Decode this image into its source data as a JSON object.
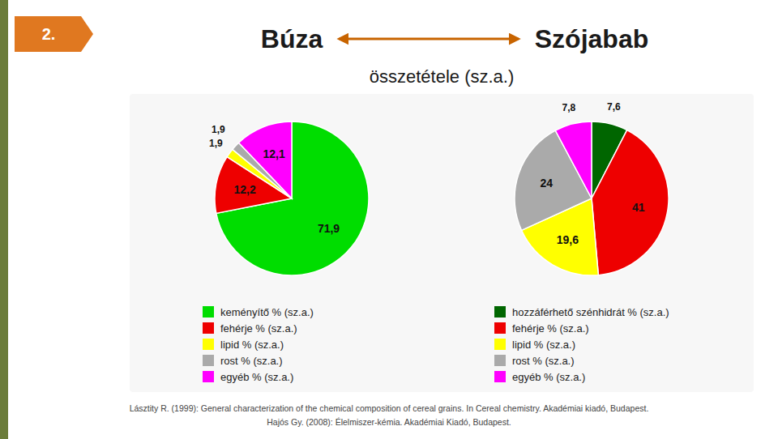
{
  "chart_data": [
    {
      "type": "pie",
      "title": "Búza",
      "categories": [
        "keményítő % (sz.a.)",
        "fehérje % (sz.a.)",
        "lipid % (sz.a.)",
        "rost % (sz.a.)",
        "egyéb % (sz.a.)"
      ],
      "values": [
        71.9,
        12.2,
        1.9,
        1.9,
        12.1
      ],
      "value_labels": [
        "71,9",
        "12,2",
        "1,9",
        "1,9",
        "12,1"
      ],
      "colors": [
        "#00dd00",
        "#ee0000",
        "#ffff00",
        "#aaaaaa",
        "#ff00ff"
      ],
      "data_labels": true,
      "legend": "bottom"
    },
    {
      "type": "pie",
      "title": "Szójabab",
      "categories": [
        "hozzáférhető szénhidrát % (sz.a.)",
        "fehérje % (sz.a.)",
        "lipid % (sz.a.)",
        "rost % (sz.a.)",
        "egyéb % (sz.a.)"
      ],
      "values": [
        7.6,
        41,
        19.6,
        24,
        7.8
      ],
      "value_labels": [
        "7,6",
        "41",
        "19,6",
        "24",
        "7,8"
      ],
      "colors": [
        "#006600",
        "#ee0000",
        "#ffff00",
        "#aaaaaa",
        "#ff00ff"
      ],
      "data_labels": true,
      "legend": "bottom"
    }
  ],
  "subtitle": "összetétele (sz.a.)",
  "annotations": [
    "2.",
    "Lásztity R. (1999): General characterization of the chemical composition of cereal grains. In Cereal chemistry. Akadémiai kiadó, Budapest.",
    "Hajós Gy. (2008): Élelmiszer-kémia. Akadémiai Kiadó, Budapest."
  ]
}
